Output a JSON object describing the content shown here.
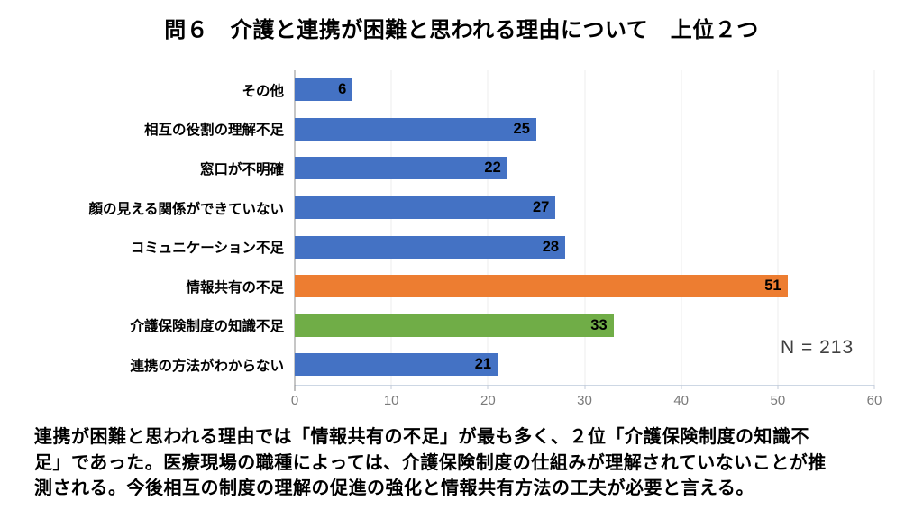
{
  "title": "問６　介護と連携が困難と思われる理由について　上位２つ",
  "chart_data": {
    "type": "bar",
    "orientation": "horizontal",
    "title": "問６　介護と連携が困難と思われる理由について　上位２つ",
    "categories": [
      "その他",
      "相互の役割の理解不足",
      "窓口が不明確",
      "顔の見える関係ができていない",
      "コミュニケーション不足",
      "情報共有の不足",
      "介護保険制度の知識不足",
      "連携の方法がわからない"
    ],
    "values": [
      6,
      25,
      22,
      27,
      28,
      51,
      33,
      21
    ],
    "bar_colors": [
      "#4472C4",
      "#4472C4",
      "#4472C4",
      "#4472C4",
      "#4472C4",
      "#ED7D31",
      "#70AD47",
      "#4472C4"
    ],
    "xlim": [
      0,
      60
    ],
    "xticks": [
      "0",
      "10",
      "20",
      "30",
      "40",
      "50",
      "60"
    ],
    "grid": true,
    "legend": false,
    "data_label_position": "inside-end",
    "annotation": "N = 213"
  },
  "footer": {
    "lines": [
      "連携が困難と思われる理由では「情報共有の不足」が最も多く、２位「介護保険制度の知識不",
      "足」であった。医療現場の職種によっては、介護保険制度の仕組みが理解されていないことが推",
      "測される。今後相互の制度の理解の促進の強化と情報共有方法の工夫が必要と言える。"
    ]
  },
  "colors": {
    "bar_blue": "#4472C4",
    "bar_orange": "#ED7D31",
    "bar_green": "#70AD47",
    "axis_line": "#8C8C8C",
    "gridline": "#ECECEC",
    "baseline": "#CDD7E4",
    "tick_label": "#7A7A7A",
    "text": "#000000",
    "annotation_text": "#3F3F3F"
  }
}
